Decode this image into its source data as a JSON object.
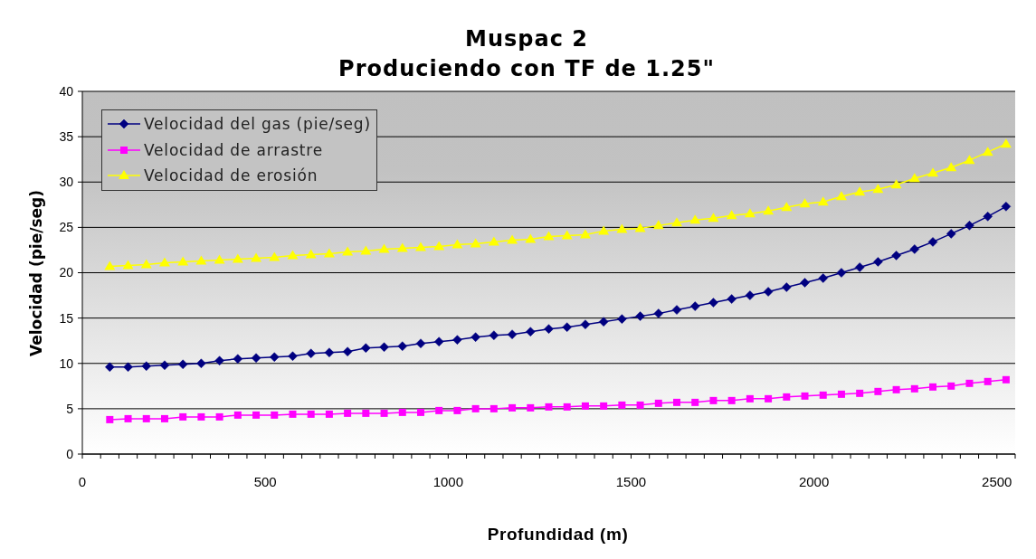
{
  "chart_data": {
    "type": "line",
    "title": "Muspac 2\nProduciendo con TF de 1.25\"",
    "xlabel": "Profundidad (m)",
    "ylabel": "Velocidad (pie/seg)",
    "x": [
      75,
      125,
      175,
      225,
      275,
      325,
      375,
      425,
      475,
      525,
      575,
      625,
      675,
      725,
      775,
      825,
      875,
      925,
      975,
      1025,
      1075,
      1125,
      1175,
      1225,
      1275,
      1325,
      1375,
      1425,
      1475,
      1525,
      1575,
      1625,
      1675,
      1725,
      1775,
      1825,
      1875,
      1925,
      1975,
      2025,
      2075,
      2125,
      2175,
      2225,
      2275,
      2325,
      2375,
      2425,
      2475,
      2525
    ],
    "series": [
      {
        "name": "Velocidad del gas (pie/seg)",
        "color": "#000080",
        "marker": "diamond",
        "values": [
          9.6,
          9.6,
          9.7,
          9.8,
          9.9,
          10.0,
          10.3,
          10.5,
          10.6,
          10.7,
          10.8,
          11.1,
          11.2,
          11.3,
          11.7,
          11.8,
          11.9,
          12.2,
          12.4,
          12.6,
          12.9,
          13.1,
          13.2,
          13.5,
          13.8,
          14.0,
          14.3,
          14.6,
          14.9,
          15.2,
          15.5,
          15.9,
          16.3,
          16.7,
          17.1,
          17.5,
          17.9,
          18.4,
          18.9,
          19.4,
          20.0,
          20.6,
          21.2,
          21.9,
          22.6,
          23.4,
          24.3,
          25.2,
          26.2,
          27.3
        ]
      },
      {
        "name": "Velocidad de arrastre",
        "color": "#ff00ff",
        "marker": "square",
        "values": [
          3.8,
          3.9,
          3.9,
          3.9,
          4.1,
          4.1,
          4.1,
          4.3,
          4.3,
          4.3,
          4.4,
          4.4,
          4.4,
          4.5,
          4.5,
          4.5,
          4.6,
          4.6,
          4.8,
          4.8,
          5.0,
          5.0,
          5.1,
          5.1,
          5.2,
          5.2,
          5.3,
          5.3,
          5.4,
          5.4,
          5.6,
          5.7,
          5.7,
          5.9,
          5.9,
          6.1,
          6.1,
          6.3,
          6.4,
          6.5,
          6.6,
          6.7,
          6.9,
          7.1,
          7.2,
          7.4,
          7.5,
          7.8,
          8.0,
          8.2
        ]
      },
      {
        "name": "Velocidad de erosión",
        "color": "#ffff00",
        "marker": "triangle",
        "values": [
          20.7,
          20.8,
          20.9,
          21.1,
          21.2,
          21.3,
          21.4,
          21.5,
          21.6,
          21.7,
          21.9,
          22.0,
          22.1,
          22.3,
          22.4,
          22.6,
          22.7,
          22.8,
          22.9,
          23.1,
          23.2,
          23.4,
          23.6,
          23.7,
          24.0,
          24.1,
          24.2,
          24.6,
          24.8,
          24.9,
          25.2,
          25.5,
          25.8,
          26.0,
          26.3,
          26.5,
          26.8,
          27.2,
          27.6,
          27.8,
          28.4,
          28.9,
          29.2,
          29.7,
          30.4,
          31.0,
          31.6,
          32.4,
          33.3,
          34.2
        ]
      }
    ],
    "xlim": [
      0,
      2550
    ],
    "xticks": [
      0,
      {
        "value": 50,
        "label": null
      },
      {
        "value": 100,
        "label": null
      },
      {
        "value": 150,
        "label": null
      },
      {
        "value": 200,
        "label": null
      },
      {
        "value": 250,
        "label": null
      },
      {
        "value": 300,
        "label": null
      },
      {
        "value": 350,
        "label": null
      },
      {
        "value": 400,
        "label": null
      },
      {
        "value": 450,
        "label": null
      },
      500,
      {
        "value": 550,
        "label": null
      },
      {
        "value": 600,
        "label": null
      },
      {
        "value": 650,
        "label": null
      },
      {
        "value": 700,
        "label": null
      },
      {
        "value": 750,
        "label": null
      },
      {
        "value": 800,
        "label": null
      },
      {
        "value": 850,
        "label": null
      },
      {
        "value": 900,
        "label": null
      },
      {
        "value": 950,
        "label": null
      },
      1000,
      {
        "value": 1050,
        "label": null
      },
      {
        "value": 1100,
        "label": null
      },
      {
        "value": 1150,
        "label": null
      },
      {
        "value": 1200,
        "label": null
      },
      {
        "value": 1250,
        "label": null
      },
      {
        "value": 1300,
        "label": null
      },
      {
        "value": 1350,
        "label": null
      },
      {
        "value": 1400,
        "label": null
      },
      {
        "value": 1450,
        "label": null
      },
      1500,
      {
        "value": 1550,
        "label": null
      },
      {
        "value": 1600,
        "label": null
      },
      {
        "value": 1650,
        "label": null
      },
      {
        "value": 1700,
        "label": null
      },
      {
        "value": 1750,
        "label": null
      },
      {
        "value": 1800,
        "label": null
      },
      {
        "value": 1850,
        "label": null
      },
      {
        "value": 1900,
        "label": null
      },
      {
        "value": 1950,
        "label": null
      },
      2000,
      {
        "value": 2050,
        "label": null
      },
      {
        "value": 2100,
        "label": null
      },
      {
        "value": 2150,
        "label": null
      },
      {
        "value": 2200,
        "label": null
      },
      {
        "value": 2250,
        "label": null
      },
      {
        "value": 2300,
        "label": null
      },
      {
        "value": 2350,
        "label": null
      },
      {
        "value": 2400,
        "label": null
      },
      {
        "value": 2450,
        "label": null
      },
      2500,
      {
        "value": 2550,
        "label": null
      }
    ],
    "ylim": [
      0,
      40
    ],
    "yticks": [
      0,
      5,
      10,
      15,
      20,
      25,
      30,
      35,
      40
    ],
    "grid": "y",
    "legend": "top left",
    "line_style": "solid"
  }
}
